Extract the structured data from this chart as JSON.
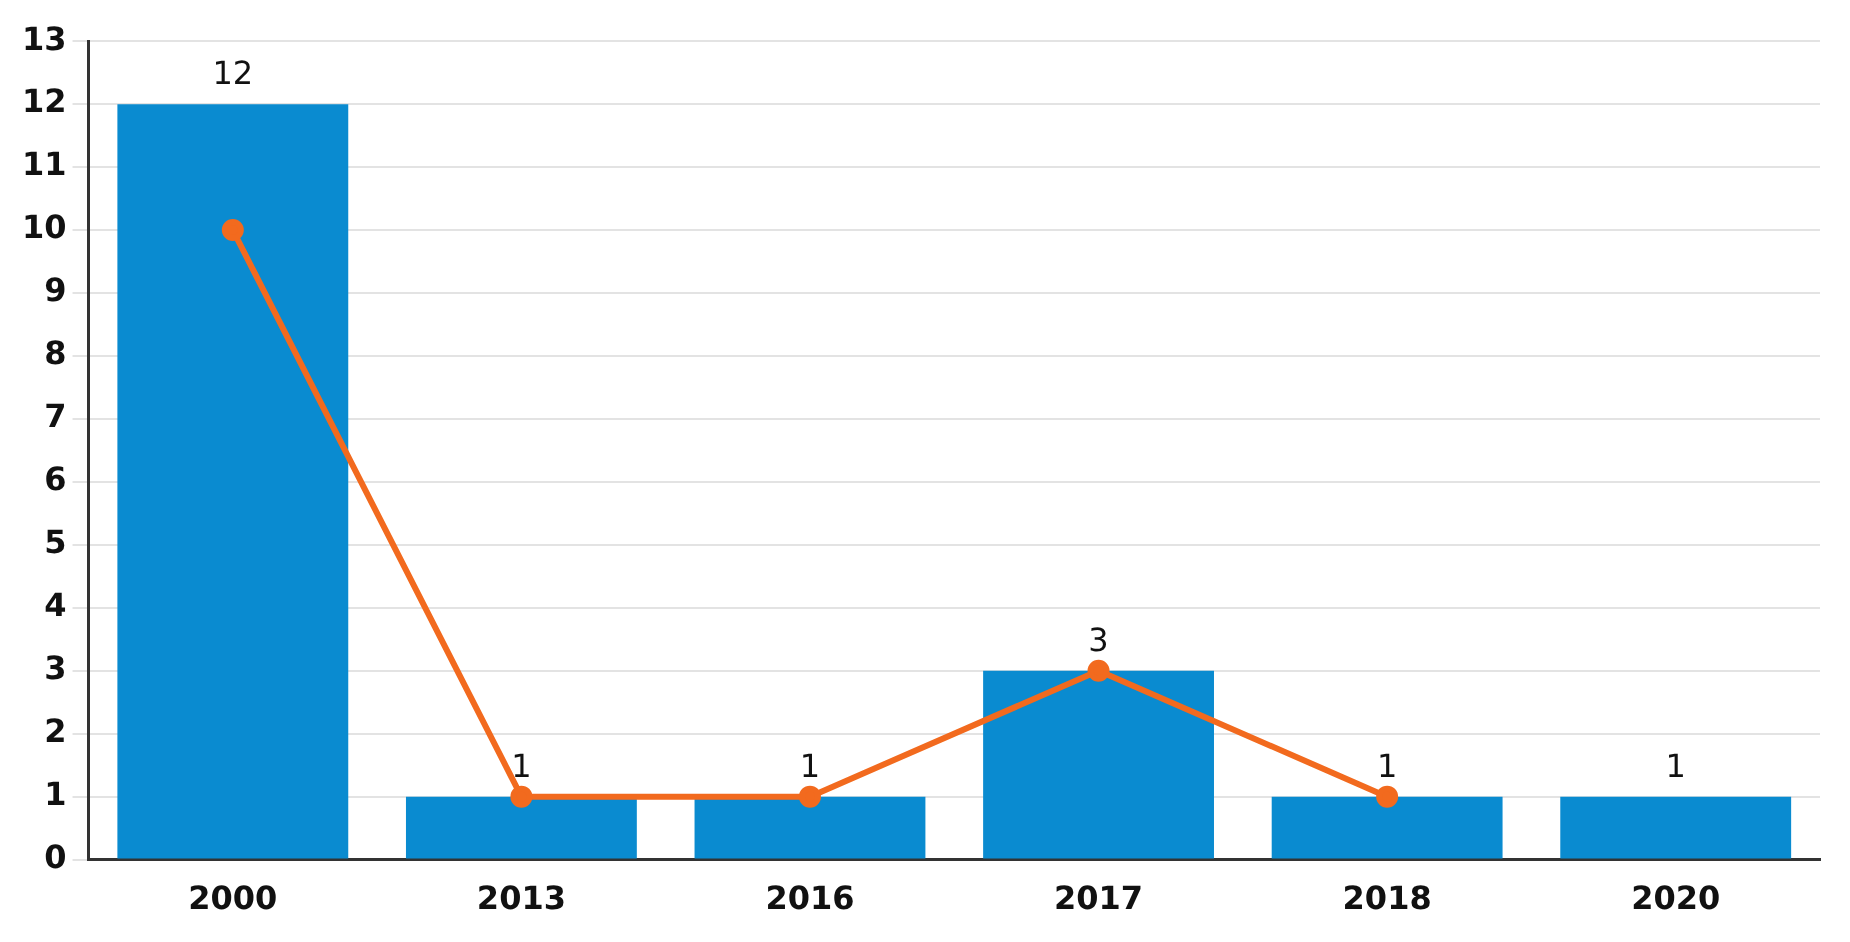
{
  "chart_data": {
    "type": "bar",
    "categories": [
      "2000",
      "2013",
      "2016",
      "2017",
      "2018",
      "2020"
    ],
    "series": [
      {
        "color": "#0a8bd0",
        "values": [
          12,
          1,
          1,
          3,
          1,
          1
        ],
        "value_labels": [
          "12",
          "1",
          "1",
          "3",
          "1",
          "1"
        ]
      },
      {
        "type": "line",
        "color": "#f26a1e",
        "values": [
          10,
          1,
          1,
          3,
          1,
          null
        ]
      }
    ],
    "ylim": [
      0,
      13
    ],
    "yticks": [
      0,
      1,
      2,
      3,
      4,
      5,
      6,
      7,
      8,
      9,
      10,
      11,
      12,
      13
    ],
    "grid": "y",
    "legend": false,
    "marker": "circle"
  }
}
